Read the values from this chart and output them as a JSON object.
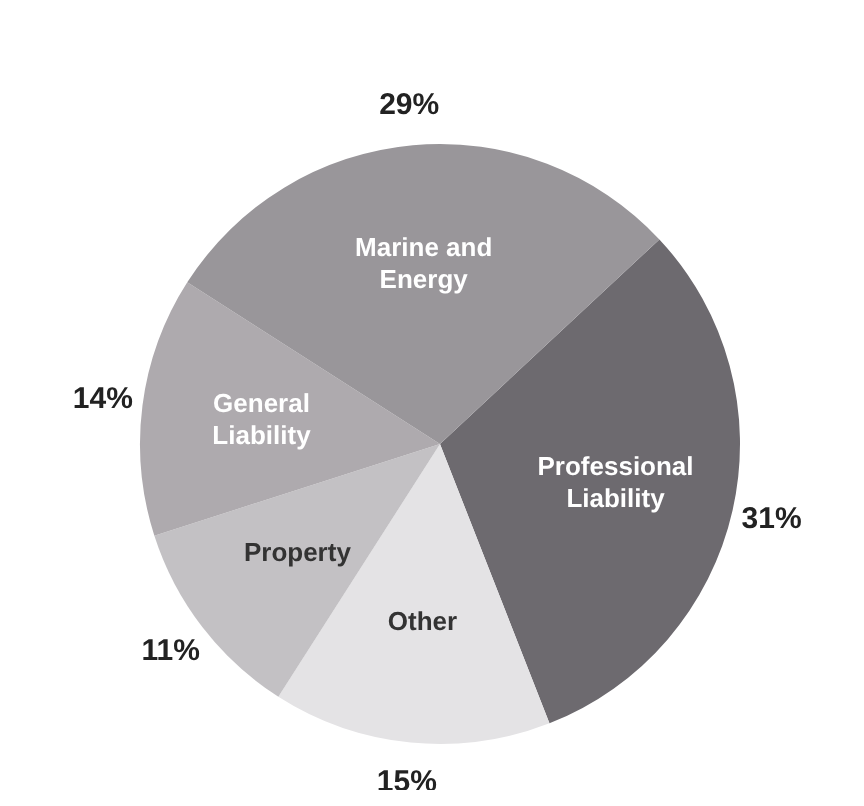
{
  "chart_data": {
    "type": "pie",
    "categories": [
      "Professional Liability",
      "Other",
      "Property",
      "General Liability",
      "Marine and Energy"
    ],
    "values": [
      31,
      15,
      11,
      14,
      29
    ],
    "colors": [
      "#6d6a6f",
      "#e4e3e5",
      "#c3c1c4",
      "#aeaaae",
      "#99969a"
    ],
    "value_labels": [
      "31%",
      "15%",
      "11%",
      "14%",
      "29%"
    ],
    "legend": false
  }
}
